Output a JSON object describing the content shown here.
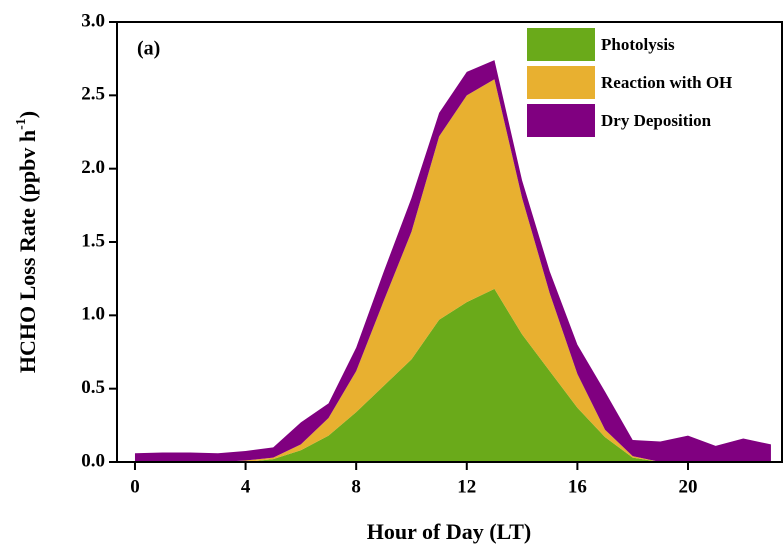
{
  "chart_data": {
    "type": "stacked_area",
    "x_label": "Hour of Day (LT)",
    "y_label": {
      "text": "HCHO Loss Rate (ppbv h",
      "superscript": "-1",
      "end": ")"
    },
    "annotation": "(a)",
    "x": [
      0,
      1,
      2,
      3,
      4,
      5,
      6,
      7,
      8,
      9,
      10,
      11,
      12,
      13,
      14,
      15,
      16,
      17,
      18,
      19,
      20,
      21,
      22,
      23
    ],
    "series": [
      {
        "name": "Photolysis",
        "color": "#6aaa1a",
        "values": [
          0,
          0,
          0,
          0,
          0,
          0.02,
          0.08,
          0.18,
          0.34,
          0.52,
          0.7,
          0.97,
          1.09,
          1.18,
          0.87,
          0.62,
          0.37,
          0.17,
          0.03,
          0,
          0,
          0,
          0,
          0
        ]
      },
      {
        "name": "Reaction with OH",
        "color": "#e8b030",
        "values": [
          0,
          0,
          0,
          0,
          0.01,
          0.01,
          0.04,
          0.12,
          0.28,
          0.58,
          0.87,
          1.25,
          1.41,
          1.43,
          0.93,
          0.53,
          0.23,
          0.05,
          0.01,
          0,
          0,
          0,
          0,
          0
        ]
      },
      {
        "name": "Dry Deposition",
        "color": "#800080",
        "values": [
          0.06,
          0.065,
          0.065,
          0.06,
          0.065,
          0.07,
          0.15,
          0.1,
          0.16,
          0.2,
          0.23,
          0.16,
          0.16,
          0.13,
          0.12,
          0.15,
          0.2,
          0.26,
          0.11,
          0.14,
          0.18,
          0.11,
          0.16,
          0.12
        ]
      }
    ],
    "xlim": [
      -0.65,
      23.4
    ],
    "ylim": [
      0,
      3.0
    ],
    "xticks": [
      0,
      4,
      8,
      12,
      16,
      20
    ],
    "yticks": [
      {
        "value": 0,
        "label": "0.0"
      },
      0.5,
      {
        "value": 1,
        "label": "1.0"
      },
      1.5,
      {
        "value": 2,
        "label": "2.0"
      },
      2.5,
      {
        "value": 3,
        "label": "3.0"
      }
    ],
    "legend": "upper right"
  }
}
